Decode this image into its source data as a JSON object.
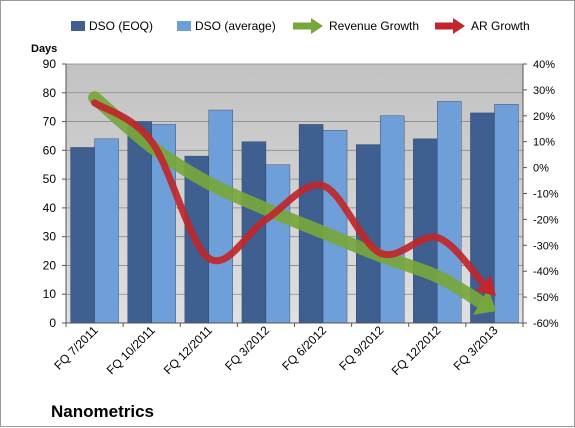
{
  "chart_data": {
    "type": "bar",
    "title": "Nanometrics",
    "ylabel": "Days",
    "ylim": [
      0,
      90
    ],
    "y_ticks": [
      0,
      10,
      20,
      30,
      40,
      50,
      60,
      70,
      80,
      90
    ],
    "y2lim": [
      -60,
      40
    ],
    "y2_ticks": [
      "-60%",
      "-50%",
      "-40%",
      "-30%",
      "-20%",
      "-10%",
      "0%",
      "10%",
      "20%",
      "30%",
      "40%"
    ],
    "categories": [
      "FQ 7/2011",
      "FQ 10/2011",
      "FQ 12/2011",
      "FQ 3/2012",
      "FQ 6/2012",
      "FQ 9/2012",
      "FQ 12/2012",
      "FQ 3/2013"
    ],
    "series": [
      {
        "name": "DSO (EOQ)",
        "values": [
          61,
          70,
          58,
          63,
          69,
          62,
          64,
          73
        ],
        "color": "#3e5f8f"
      },
      {
        "name": "DSO (average)",
        "values": [
          64,
          69,
          74,
          55,
          67,
          72,
          77,
          76
        ],
        "color": "#6f9fd8"
      }
    ],
    "arrows": [
      {
        "name": "Revenue Growth",
        "color": "#77a63c",
        "axis": "secondary",
        "values": [
          27,
          8,
          -6,
          -16,
          -25,
          -34,
          -42,
          -55
        ]
      },
      {
        "name": "AR Growth",
        "color": "#c0262b",
        "axis": "secondary",
        "values": [
          25,
          10,
          -35,
          -20,
          -7,
          -33,
          -27,
          -49
        ]
      }
    ],
    "plot_background": "#c8c8c8",
    "legend": "top",
    "grid": true
  }
}
